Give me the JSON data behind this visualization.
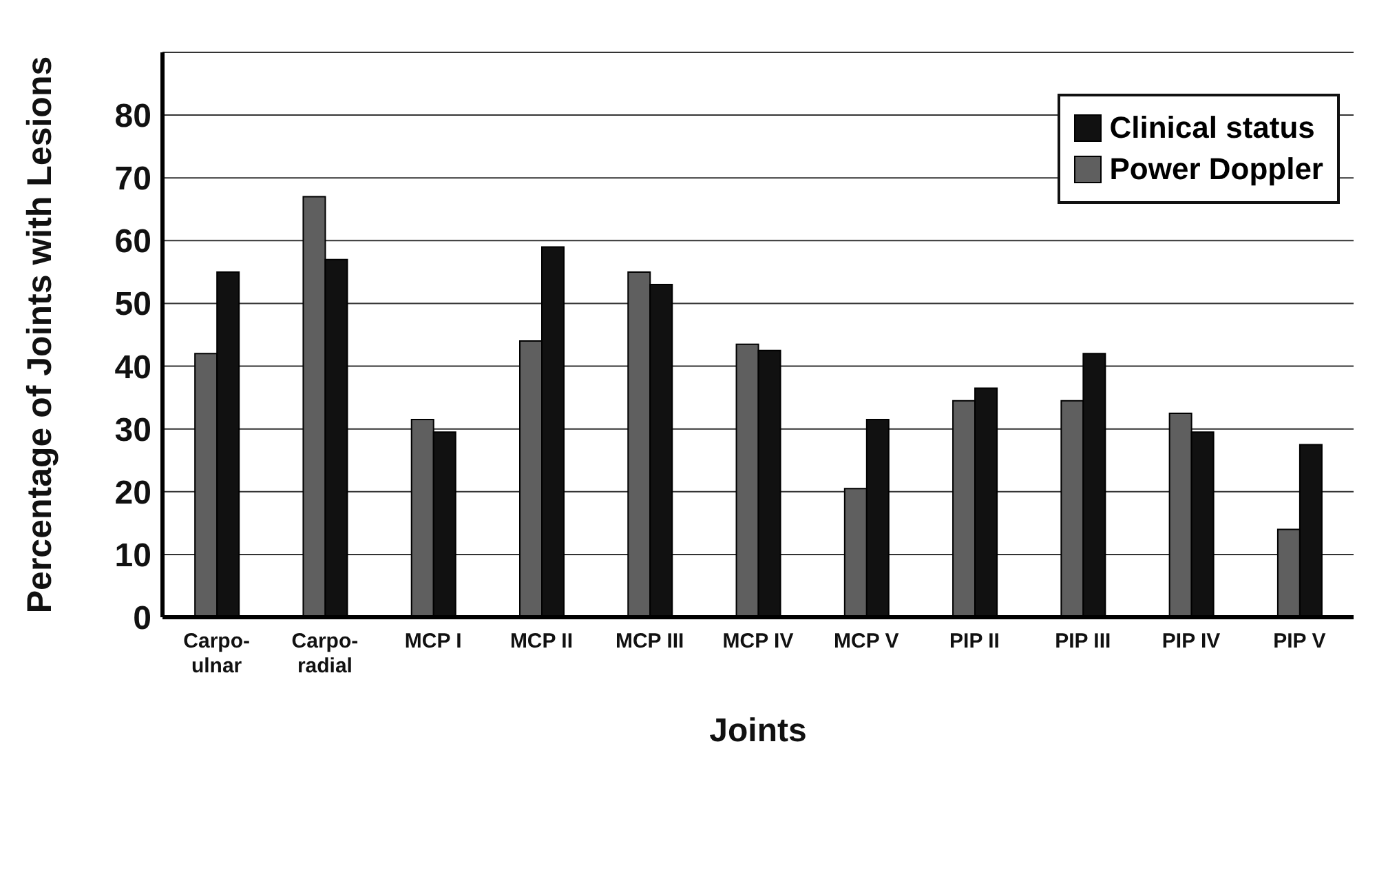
{
  "chart_data": {
    "type": "bar",
    "xlabel": "Joints",
    "ylabel": "Percentage of  Joints with Lesions",
    "categories": [
      "Carpo-\nulnar",
      "Carpo-\nradial",
      "MCP I",
      "MCP II",
      "MCP III",
      "MCP IV",
      "MCP V",
      "PIP II",
      "PIP III",
      "PIP IV",
      "PIP V"
    ],
    "series": [
      {
        "name": "Power Doppler",
        "color": "#5f5f5f",
        "values": [
          42,
          67,
          31.5,
          44,
          55,
          43.5,
          20.5,
          34.5,
          34.5,
          32.5,
          14
        ]
      },
      {
        "name": "Clinical status",
        "color": "#111111",
        "values": [
          55,
          57,
          29.5,
          59,
          53,
          42.5,
          31.5,
          36.5,
          42,
          29.5,
          27.5
        ]
      }
    ],
    "ylim": [
      0,
      90
    ],
    "yticks": [
      0,
      10,
      20,
      30,
      40,
      50,
      60,
      70,
      80
    ],
    "grid": "y",
    "legend": "top right"
  }
}
